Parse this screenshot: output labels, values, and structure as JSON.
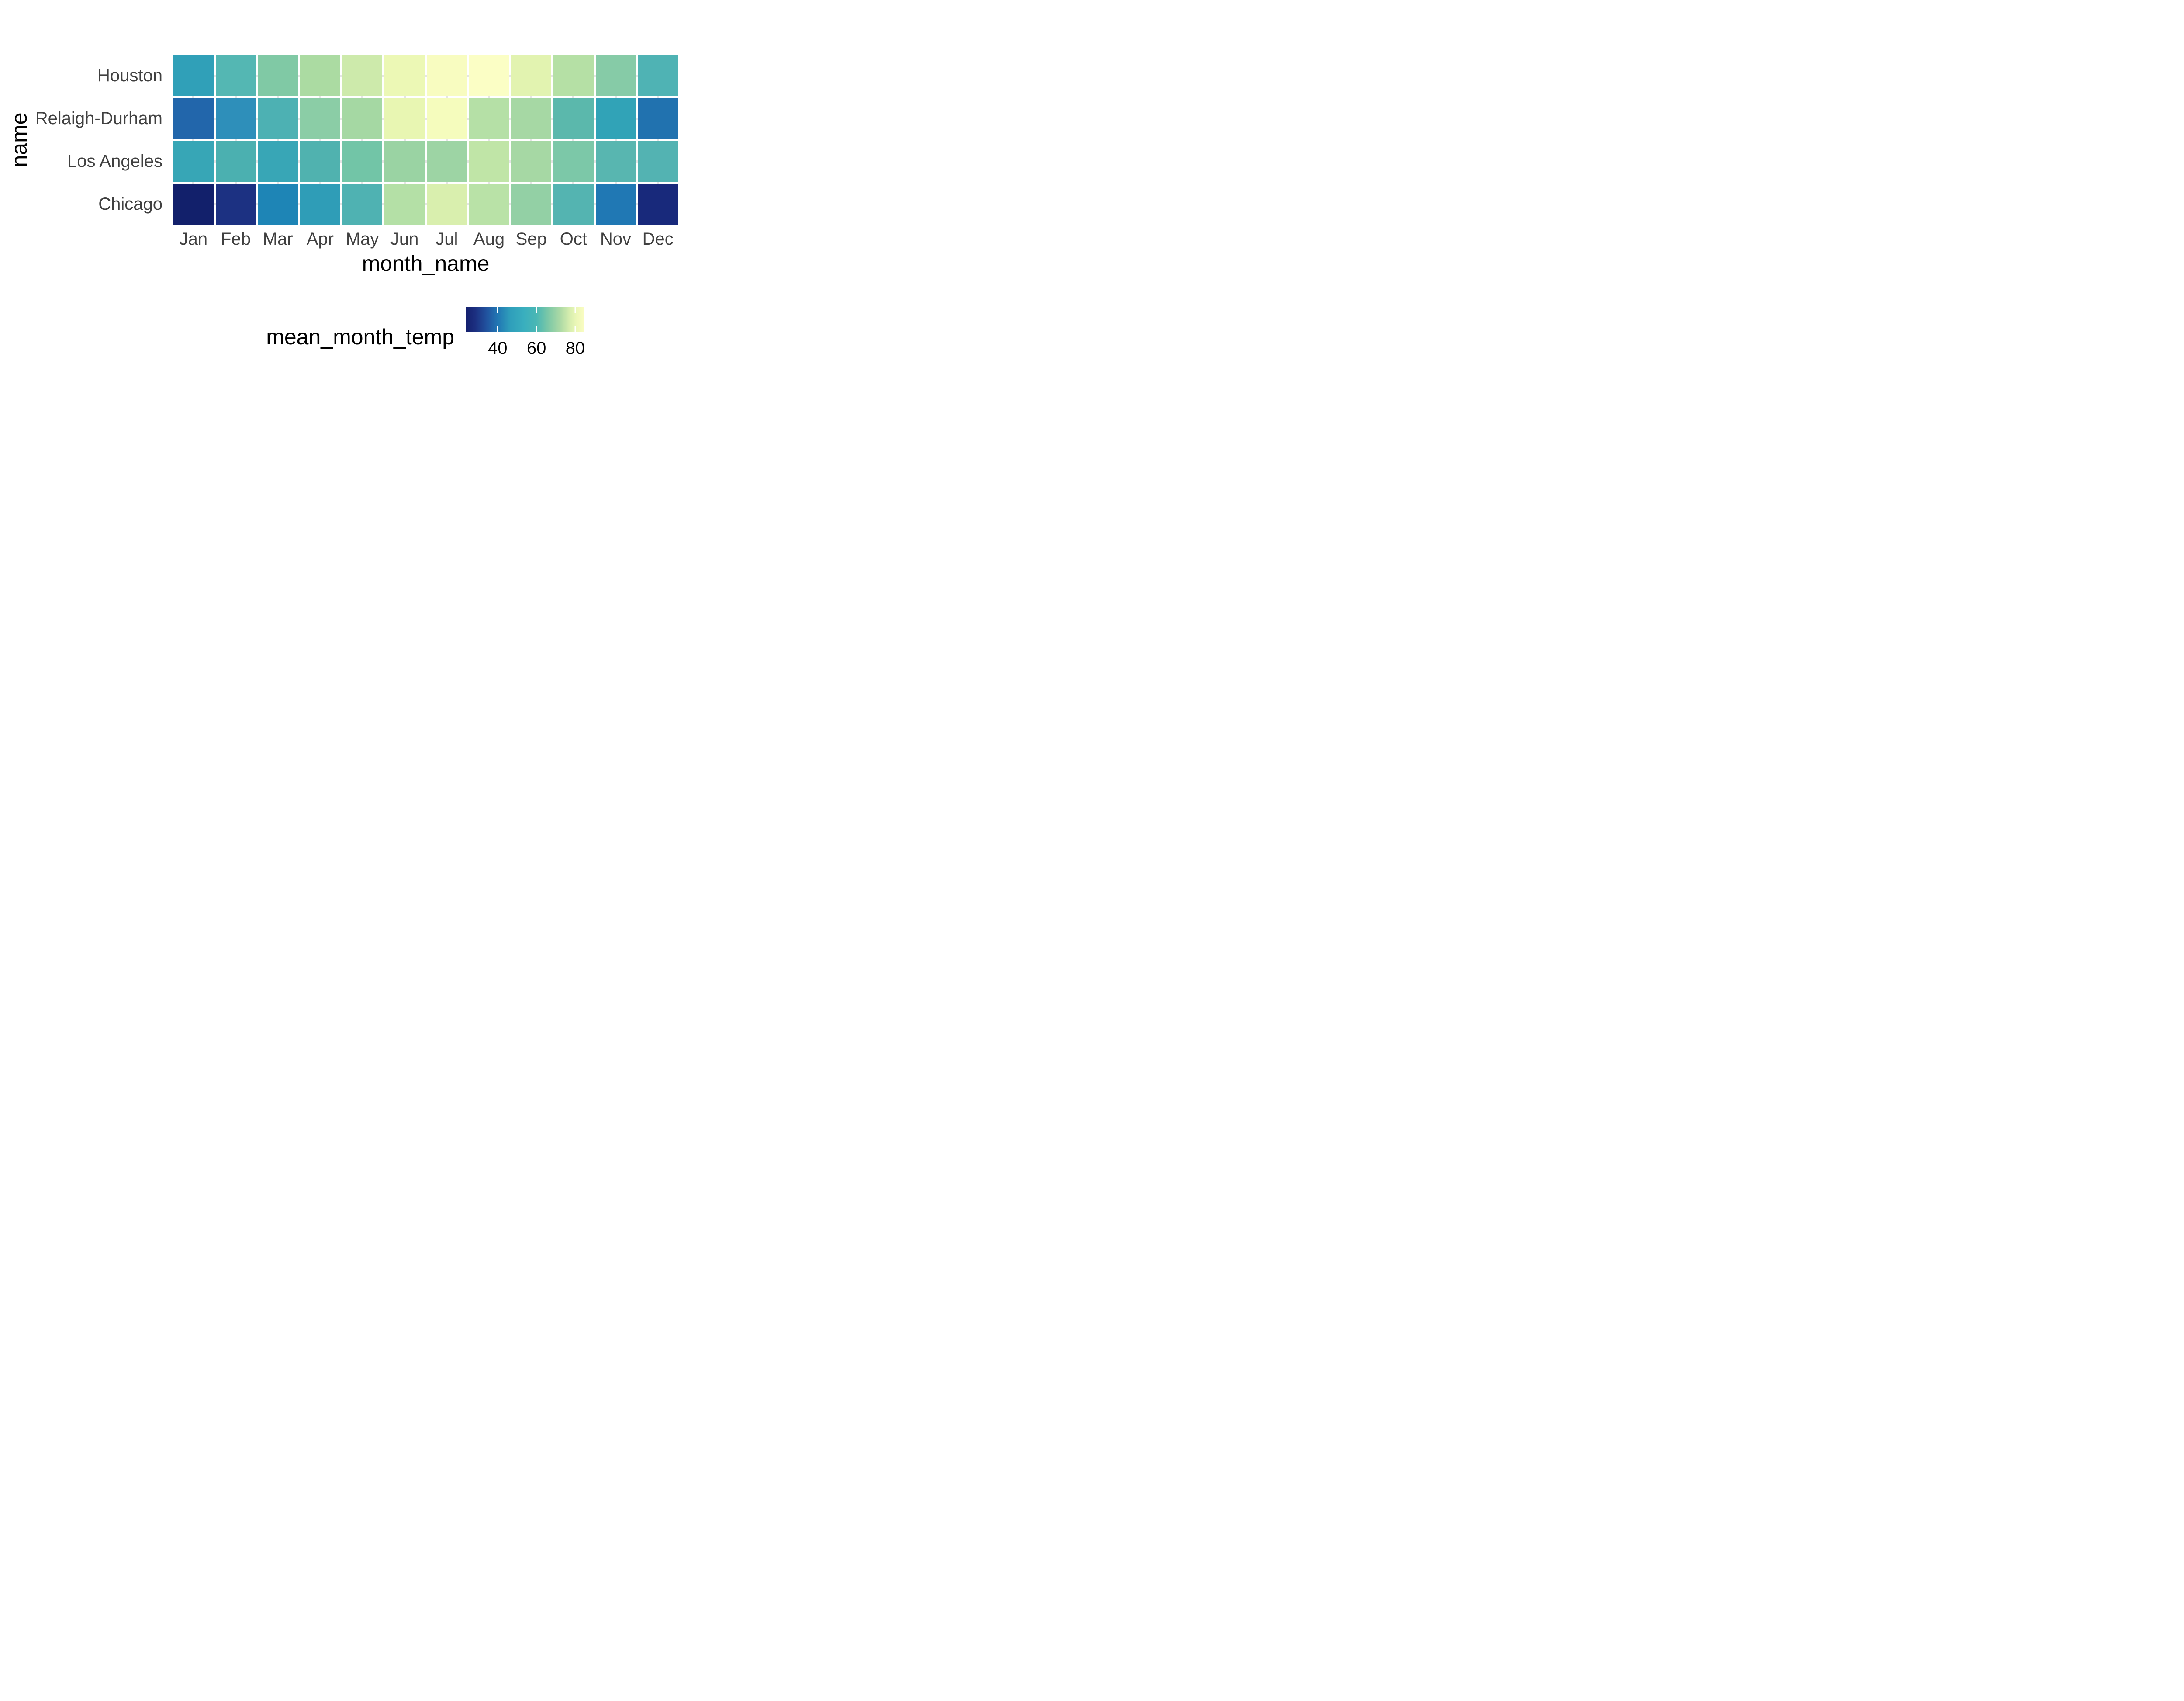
{
  "chart_data": {
    "type": "heatmap",
    "title": "",
    "xlabel": "month_name",
    "ylabel": "name",
    "x_categories": [
      "Jan",
      "Feb",
      "Mar",
      "Apr",
      "May",
      "Jun",
      "Jul",
      "Aug",
      "Sep",
      "Oct",
      "Nov",
      "Dec"
    ],
    "y_categories": [
      "Houston",
      "Relaigh-Durham",
      "Los Angeles",
      "Chicago"
    ],
    "value_label": "mean_month_temp",
    "series": [
      {
        "name": "Houston",
        "values": [
          53,
          58,
          64,
          69,
          75,
          81,
          84,
          85,
          79,
          71,
          63,
          57
        ],
        "colors": [
          "#30a0b8",
          "#54b7b3",
          "#80c9a5",
          "#abdba2",
          "#cdeaab",
          "#ecf8b5",
          "#f8fcc0",
          "#fbfec5",
          "#e2f3b0",
          "#b5e0a5",
          "#86cba7",
          "#4fb3b4"
        ]
      },
      {
        "name": "Relaigh-Durham",
        "values": [
          41,
          46,
          54,
          63,
          68,
          79,
          83,
          72,
          70,
          61,
          50,
          43
        ],
        "colors": [
          "#2266ab",
          "#2e8fba",
          "#4db1b3",
          "#8bcda6",
          "#a5d8a3",
          "#e8f6b2",
          "#f5fcbd",
          "#b5e0a6",
          "#a6d8a4",
          "#5bb8ac",
          "#31a3b7",
          "#2172af"
        ]
      },
      {
        "name": "Los Angeles",
        "values": [
          57,
          61,
          58,
          61,
          66,
          69,
          70,
          73,
          70,
          67,
          62,
          61
        ],
        "colors": [
          "#37a6b6",
          "#4bb0b0",
          "#38a6b6",
          "#50b2af",
          "#72c5a7",
          "#9ad3a3",
          "#9dd4a4",
          "#c0e5a7",
          "#a6d8a4",
          "#7cc8a8",
          "#58b6b0",
          "#53b3b2"
        ]
      },
      {
        "name": "Chicago",
        "values": [
          24,
          28,
          40,
          49,
          58,
          72,
          77,
          73,
          67,
          59,
          42,
          28
        ],
        "colors": [
          "#12206b",
          "#1c3182",
          "#1e85b6",
          "#2f9db7",
          "#4fb2b2",
          "#b4e0a6",
          "#d9efae",
          "#b9e2a7",
          "#93d0a5",
          "#54b4b1",
          "#2078b4",
          "#18297b"
        ]
      }
    ],
    "legend": {
      "title": "mean_month_temp",
      "ticks": [
        40,
        60,
        80
      ],
      "range": [
        23.5,
        84.3
      ],
      "position": "bottom-right",
      "orientation": "horizontal"
    },
    "palette": {
      "name": "YlGnBu (low = dark navy, high = pale yellow)",
      "gradient_stops": [
        {
          "pos": 0.0,
          "color": "#131f6d"
        },
        {
          "pos": 0.08,
          "color": "#1c2f80"
        },
        {
          "pos": 0.18,
          "color": "#21539f"
        },
        {
          "pos": 0.27,
          "color": "#2176b3"
        },
        {
          "pos": 0.38,
          "color": "#2f9fbb"
        },
        {
          "pos": 0.5,
          "color": "#3aafbe"
        },
        {
          "pos": 0.6,
          "color": "#4ab7b4"
        },
        {
          "pos": 0.7,
          "color": "#7cc8a7"
        },
        {
          "pos": 0.8,
          "color": "#abd9a5"
        },
        {
          "pos": 0.88,
          "color": "#d5edae"
        },
        {
          "pos": 0.93,
          "color": "#e9f6b6"
        },
        {
          "pos": 1.0,
          "color": "#f9fcc1"
        }
      ]
    },
    "layout": {
      "grid": "on",
      "grid_color": "#e5e5e5",
      "background": "#ffffff",
      "axis_text_color": "#404040",
      "axis_title_color": "#000000",
      "legend_tick_color": "#ffffff"
    }
  }
}
